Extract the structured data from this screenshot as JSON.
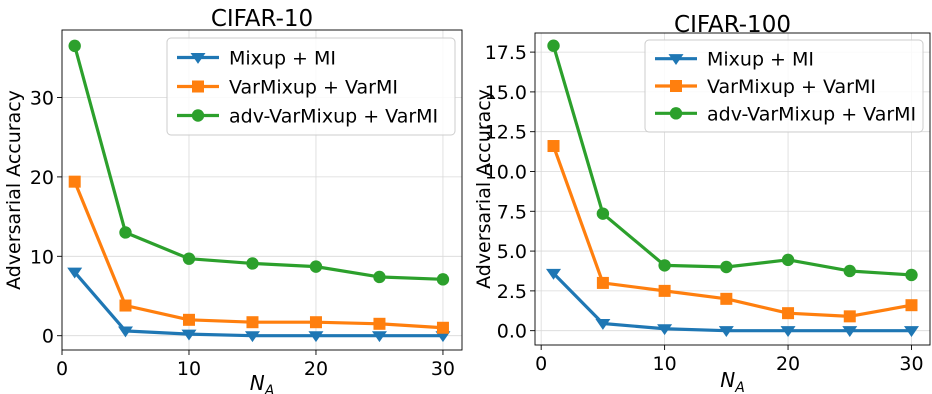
{
  "chart_data": [
    {
      "type": "line",
      "title": "CIFAR-10",
      "xlabel": "N_A",
      "ylabel": "Adversarial Accuracy",
      "xlim": [
        0,
        31.5
      ],
      "ylim": [
        -1.8,
        38.5
      ],
      "xticks": [
        0,
        10,
        20,
        30
      ],
      "xtick_labels": [
        "0",
        "10",
        "20",
        "30"
      ],
      "yticks": [
        0,
        10,
        20,
        30
      ],
      "ytick_labels": [
        "0",
        "10",
        "20",
        "30"
      ],
      "grid": true,
      "legend": "top-right",
      "x": [
        1,
        5,
        10,
        15,
        20,
        25,
        30
      ],
      "series": [
        {
          "name": "Mixup + MI",
          "color": "#1f77b4",
          "marker": "triangle-down",
          "values": [
            8.0,
            0.6,
            0.2,
            0.0,
            0.0,
            0.0,
            0.0
          ]
        },
        {
          "name": "VarMixup + VarMI",
          "color": "#ff7f0e",
          "marker": "square",
          "values": [
            19.4,
            3.8,
            2.0,
            1.7,
            1.7,
            1.5,
            1.0
          ]
        },
        {
          "name": "adv-VarMixup + VarMI",
          "color": "#2ca02c",
          "marker": "circle",
          "values": [
            36.5,
            13.0,
            9.7,
            9.1,
            8.7,
            7.4,
            7.1
          ]
        }
      ]
    },
    {
      "type": "line",
      "title": "CIFAR-100",
      "xlabel": "N_A",
      "ylabel": "Adversarial Accuracy",
      "xlim": [
        -0.5,
        31.5
      ],
      "ylim": [
        -0.9,
        18.7
      ],
      "xticks": [
        0,
        10,
        20,
        30
      ],
      "xtick_labels": [
        "0",
        "10",
        "20",
        "30"
      ],
      "yticks": [
        0.0,
        2.5,
        5.0,
        7.5,
        10.0,
        12.5,
        15.0,
        17.5
      ],
      "ytick_labels": [
        "0.0",
        "2.5",
        "5.0",
        "7.5",
        "10.0",
        "12.5",
        "15.0",
        "17.5"
      ],
      "grid": true,
      "legend": "top-right",
      "x": [
        1,
        5,
        10,
        15,
        20,
        25,
        30
      ],
      "series": [
        {
          "name": "Mixup + MI",
          "color": "#1f77b4",
          "marker": "triangle-down",
          "values": [
            3.6,
            0.45,
            0.12,
            0.0,
            0.0,
            0.0,
            0.0
          ]
        },
        {
          "name": "VarMixup + VarMI",
          "color": "#ff7f0e",
          "marker": "square",
          "values": [
            11.6,
            3.0,
            2.5,
            2.0,
            1.1,
            0.9,
            1.6
          ]
        },
        {
          "name": "adv-VarMixup + VarMI",
          "color": "#2ca02c",
          "marker": "circle",
          "values": [
            17.9,
            7.35,
            4.1,
            4.0,
            4.45,
            3.75,
            3.5
          ]
        }
      ]
    }
  ]
}
